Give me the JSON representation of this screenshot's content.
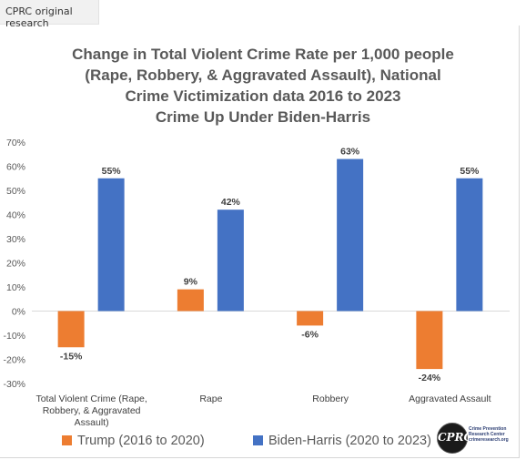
{
  "header": {
    "tag": "CPRC original research"
  },
  "chart_data": {
    "type": "bar",
    "title_lines": [
      "Change in Total Violent Crime Rate per 1,000 people",
      "(Rape, Robbery, & Aggravated Assault), National",
      "Crime Victimization data 2016 to 2023",
      "Crime Up Under Biden-Harris"
    ],
    "categories": [
      [
        "Total Violent Crime (Rape,",
        "Robbery, & Aggravated",
        "Assault)"
      ],
      [
        "Rape"
      ],
      [
        "Robbery"
      ],
      [
        "Aggravated Assault"
      ]
    ],
    "series": [
      {
        "name": "Trump (2016 to 2020)",
        "color": "#ed7d31",
        "values": [
          -15,
          9,
          -6,
          -24
        ]
      },
      {
        "name": "Biden-Harris (2020 to 2023)",
        "color": "#4472c4",
        "values": [
          55,
          42,
          63,
          55
        ]
      }
    ],
    "ylim": [
      -30,
      70
    ],
    "yticks": [
      "70%",
      "60%",
      "50%",
      "40%",
      "30%",
      "20%",
      "10%",
      "0%",
      "-10%",
      "-20%",
      "-30%"
    ],
    "value_suffix": "%",
    "grid": false,
    "legend_position": "bottom"
  },
  "logo": {
    "initials": "CPRC",
    "text": [
      "Crime Prevention",
      "Research Center",
      "crimeresearch.org"
    ]
  }
}
